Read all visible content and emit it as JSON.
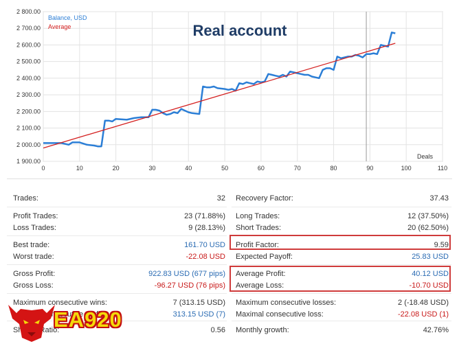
{
  "chart_data": {
    "type": "line",
    "title": "Real account",
    "xlabel": "Deals",
    "ylabel": "",
    "xlim": [
      0,
      110
    ],
    "ylim": [
      1900,
      2800
    ],
    "x_ticks": [
      0,
      10,
      20,
      30,
      40,
      50,
      60,
      70,
      80,
      90,
      100,
      110
    ],
    "y_ticks": [
      1900,
      2000,
      2100,
      2200,
      2300,
      2400,
      2500,
      2600,
      2700,
      2800
    ],
    "y_tick_labels": [
      "1 900.00",
      "2 000.00",
      "2 100.00",
      "2 200.00",
      "2 300.00",
      "2 400.00",
      "2 500.00",
      "2 600.00",
      "2 700.00",
      "2 800.00"
    ],
    "grid": true,
    "legend": "top-left",
    "vertical_marker": 89,
    "series": [
      {
        "name": "Balance, USD",
        "color": "#2b7ed6",
        "x": [
          0,
          5,
          7,
          8,
          10,
          12,
          14,
          15,
          16,
          17,
          18,
          19,
          20,
          23,
          25,
          27,
          29,
          30,
          31,
          32,
          33,
          34,
          35,
          36,
          37,
          38,
          39,
          40,
          41,
          43,
          44,
          45,
          46,
          47,
          48,
          50,
          51,
          52,
          53,
          54,
          55,
          56,
          57,
          58,
          59,
          60,
          61,
          62,
          63,
          64,
          65,
          66,
          67,
          68,
          69,
          70,
          71,
          72,
          73,
          74,
          75,
          76,
          77,
          78,
          79,
          80,
          81,
          82,
          83,
          84,
          85,
          86,
          87,
          88,
          89,
          90,
          91,
          92,
          93,
          94,
          95,
          96,
          97
        ],
        "y": [
          2010,
          2010,
          2000,
          2014,
          2014,
          2000,
          1995,
          1990,
          1990,
          2145,
          2145,
          2140,
          2155,
          2150,
          2160,
          2165,
          2165,
          2210,
          2210,
          2205,
          2190,
          2180,
          2185,
          2195,
          2190,
          2215,
          2205,
          2195,
          2190,
          2185,
          2350,
          2345,
          2345,
          2350,
          2340,
          2335,
          2330,
          2335,
          2325,
          2370,
          2365,
          2375,
          2370,
          2365,
          2380,
          2375,
          2380,
          2425,
          2420,
          2415,
          2410,
          2420,
          2410,
          2440,
          2435,
          2430,
          2425,
          2420,
          2420,
          2410,
          2405,
          2400,
          2450,
          2460,
          2460,
          2450,
          2530,
          2520,
          2525,
          2530,
          2530,
          2540,
          2535,
          2525,
          2545,
          2545,
          2550,
          2545,
          2600,
          2595,
          2590,
          2675,
          2670
        ]
      },
      {
        "name": "Average",
        "color": "#d42020",
        "x": [
          0,
          97
        ],
        "y": [
          1980,
          2610
        ]
      }
    ]
  },
  "stats": {
    "left": [
      {
        "label": "Trades:",
        "value": "32"
      },
      {
        "label": "Profit Trades:",
        "value": "23 (71.88%)"
      },
      {
        "label": "Loss Trades:",
        "value": "9 (28.13%)"
      },
      {
        "label": "Best trade:",
        "value": "161.70 USD"
      },
      {
        "label": "Worst trade:",
        "value": "-22.08 USD"
      },
      {
        "label": "Gross Profit:",
        "value": "922.83 USD (677 pips)"
      },
      {
        "label": "Gross Loss:",
        "value": "-96.27 USD (76 pips)"
      },
      {
        "label": "Maximum consecutive wins:",
        "value": "7 (313.15 USD)"
      },
      {
        "label": "Maximal consecutive profit:",
        "value": "313.15 USD (7)"
      },
      {
        "label": "Sharpe Ratio:",
        "value": "0.56"
      }
    ],
    "right": [
      {
        "label": "Recovery Factor:",
        "value": "37.43"
      },
      {
        "label": "Long Trades:",
        "value": "12 (37.50%)"
      },
      {
        "label": "Short Trades:",
        "value": "20 (62.50%)"
      },
      {
        "label": "Profit Factor:",
        "value": "9.59"
      },
      {
        "label": "Expected Payoff:",
        "value": "25.83 USD"
      },
      {
        "label": "Average Profit:",
        "value": "40.12 USD"
      },
      {
        "label": "Average Loss:",
        "value": "-10.70 USD"
      },
      {
        "label": "Maximum consecutive losses:",
        "value": "2 (-18.48 USD)"
      },
      {
        "label": "Maximal consecutive loss:",
        "value": "-22.08 USD (1)"
      },
      {
        "label": "Monthly growth:",
        "value": "42.76%"
      }
    ]
  },
  "colors": {
    "positive": "#2a6bb3",
    "negative": "#c81818",
    "highlight": "#cf3a3a"
  },
  "logo": {
    "text": "EA920",
    "icon": "bull-head-icon"
  }
}
